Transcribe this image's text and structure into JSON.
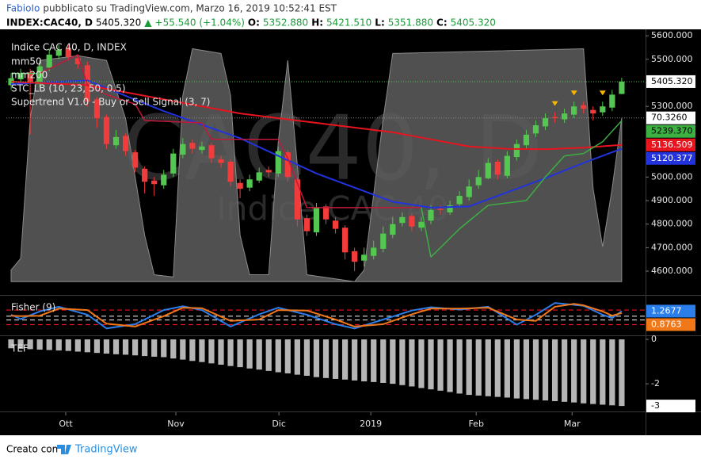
{
  "header": {
    "author": "FabioIo",
    "published": "pubblicato su TradingView.com, Marzo 16, 2019 10:52:41 EST",
    "symbol": "INDEX:CAC40, D",
    "last": "5405.320",
    "arrow": "▲",
    "change": "+55.540 (+1.04%)",
    "ohlc": [
      {
        "key": "O:",
        "value": "5352.880"
      },
      {
        "key": "H:",
        "value": "5421.510"
      },
      {
        "key": "L:",
        "value": "5351.880"
      },
      {
        "key": "C:",
        "value": "5405.320"
      }
    ]
  },
  "footer": {
    "made_with": "Creato con",
    "brand": "TradingView"
  },
  "chart_data": [
    {
      "type": "candlestick",
      "title": "Indice CAC 40, D, INDEX",
      "watermark": "CAC40, D",
      "watermark_sub": "Indice CAC 40",
      "xlim": [
        -0.5,
        66.5
      ],
      "xticks": [
        {
          "value": 5.73,
          "label": "Ott"
        },
        {
          "value": 17.27,
          "label": "Nov"
        },
        {
          "value": 28.07,
          "label": "Dic"
        },
        {
          "value": 37.7,
          "label": "2019"
        },
        {
          "value": 48.75,
          "label": "Feb"
        },
        {
          "value": 58.8,
          "label": "Mar"
        }
      ],
      "ylim": [
        4506,
        5624
      ],
      "yticks": [
        {
          "value": 5600,
          "label": "5600.000"
        },
        {
          "value": 5500,
          "label": "5500.000"
        },
        {
          "value": 5400,
          "label": "5400.000"
        },
        {
          "value": 5300,
          "label": "5300.000"
        },
        {
          "value": 5000,
          "label": "5000.000"
        },
        {
          "value": 4900,
          "label": "4900.000"
        },
        {
          "value": 4800,
          "label": "4800.000"
        },
        {
          "value": 4700,
          "label": "4700.000"
        },
        {
          "value": 4600,
          "label": "4600.000"
        }
      ],
      "y2lim": [
        -5,
        108
      ],
      "grid": false,
      "up_color": "#53c74f",
      "down_color": "#f23b3b",
      "open": [
        5390,
        5415,
        5445,
        5395,
        5465,
        5515,
        5545,
        5505,
        5475,
        5330,
        5255,
        5135,
        5175,
        5105,
        5035,
        4985,
        4965,
        5015,
        5095,
        5145,
        5115,
        5135,
        5075,
        5065,
        4975,
        4955,
        4985,
        5030,
        5015,
        5105,
        4990,
        4825,
        4765,
        4875,
        4815,
        4785,
        4685,
        4645,
        4665,
        4695,
        4755,
        4805,
        4835,
        4785,
        4815,
        4865,
        4850,
        4885,
        4915,
        4965,
        4995,
        5065,
        5005,
        5085,
        5135,
        5185,
        5215,
        5255,
        5245,
        5265,
        5305,
        5285,
        5275,
        5295,
        5352.88
      ],
      "high": [
        5440,
        5460,
        5460,
        5490,
        5545,
        5560,
        5565,
        5520,
        5490,
        5340,
        5265,
        5200,
        5185,
        5115,
        5045,
        5000,
        5030,
        5120,
        5165,
        5160,
        5150,
        5145,
        5090,
        5075,
        4990,
        5010,
        5040,
        5045,
        5130,
        5115,
        5000,
        4840,
        4890,
        4885,
        4830,
        4795,
        4700,
        4700,
        4730,
        4790,
        4830,
        4850,
        4845,
        4830,
        4880,
        4880,
        4900,
        4940,
        4990,
        5030,
        5080,
        5075,
        5110,
        5160,
        5200,
        5240,
        5270,
        5275,
        5290,
        5320,
        5320,
        5300,
        5320,
        5370,
        5421.51
      ],
      "low": [
        5370,
        5400,
        5180,
        5380,
        5450,
        5500,
        5495,
        5460,
        5300,
        5210,
        5120,
        5120,
        5090,
        5020,
        4930,
        4920,
        4950,
        5000,
        5080,
        5100,
        5100,
        5060,
        5040,
        4960,
        4910,
        4940,
        4975,
        5000,
        5000,
        4980,
        4790,
        4750,
        4750,
        4800,
        4760,
        4650,
        4600,
        4620,
        4650,
        4680,
        4740,
        4790,
        4770,
        4770,
        4800,
        4840,
        4840,
        4870,
        4900,
        4950,
        4990,
        4990,
        4995,
        5070,
        5120,
        5170,
        5200,
        5230,
        5230,
        5250,
        5270,
        5240,
        5260,
        5280,
        5351.88
      ],
      "close": [
        5420,
        5440,
        5400,
        5470,
        5520,
        5540,
        5510,
        5480,
        5320,
        5250,
        5140,
        5170,
        5110,
        5040,
        4980,
        4970,
        5010,
        5100,
        5140,
        5120,
        5130,
        5080,
        5060,
        4980,
        4950,
        4990,
        5020,
        5020,
        5110,
        5000,
        4820,
        4770,
        4870,
        4820,
        4780,
        4680,
        4640,
        4670,
        4700,
        4760,
        4800,
        4830,
        4790,
        4810,
        4860,
        4860,
        4880,
        4920,
        4960,
        5000,
        5060,
        5010,
        5090,
        5140,
        5180,
        5220,
        5250,
        5250,
        5270,
        5300,
        5290,
        5270,
        5300,
        5350,
        5405.32
      ],
      "last_label": "5405.320",
      "series": [
        {
          "name": "mm50",
          "color": "#2233dd",
          "x": [
            0,
            8,
            16,
            24,
            32,
            40,
            44,
            48,
            52,
            56,
            60,
            64
          ],
          "values": [
            5395,
            5410,
            5280,
            5165,
            5015,
            4895,
            4870,
            4875,
            4935,
            4995,
            5060,
            5120.377
          ],
          "last_label": "5120.377"
        },
        {
          "name": "mm200",
          "color": "#e8141e",
          "x": [
            0,
            8,
            16,
            24,
            32,
            40,
            44,
            48,
            52,
            56,
            60,
            64
          ],
          "values": [
            5405,
            5390,
            5330,
            5270,
            5230,
            5190,
            5160,
            5130,
            5120,
            5118,
            5125,
            5136.509
          ],
          "last_label": "5136.509"
        },
        {
          "name": "STC_LB (10, 23, 50, 0.5)",
          "color": "#5e5e5e",
          "axis": "y2",
          "x": [
            0,
            1,
            2,
            3,
            7,
            10,
            12,
            14,
            15,
            17,
            18,
            19,
            22,
            23,
            24,
            25,
            27,
            28,
            29,
            30,
            31,
            36,
            37,
            39,
            40,
            60,
            61,
            62,
            63,
            64
          ],
          "values": [
            5,
            10,
            70,
            95,
            97,
            95,
            70,
            20,
            3,
            2,
            80,
            100,
            98,
            80,
            20,
            3,
            3,
            60,
            95,
            50,
            3,
            0,
            5,
            70,
            98,
            100,
            40,
            15,
            40,
            70.326
          ],
          "last_label": "70.3260"
        },
        {
          "name": "Supertrend V1.0 - Buy or Sell Signal (3, 7)",
          "color": "#c2183b",
          "up_color": "#3cb043",
          "x": [
            0,
            3,
            7,
            8,
            10,
            13,
            14,
            20,
            21,
            28,
            29,
            31,
            43,
            44,
            45,
            47,
            50,
            54,
            56,
            58,
            60,
            62,
            64
          ],
          "values": [
            5440,
            5440,
            5520,
            5390,
            5350,
            5310,
            5240,
            5230,
            5160,
            5160,
            5080,
            4870,
            4870,
            4660,
            4700,
            4780,
            4880,
            4900,
            5000,
            5090,
            5100,
            5150,
            5239.37
          ],
          "last_label": "5239.370"
        }
      ],
      "signals": {
        "color": "#f5b800",
        "x": [
          57,
          59,
          62
        ]
      }
    },
    {
      "type": "line",
      "title": "Fisher (9)",
      "ylim": [
        -3.7,
        4.2
      ],
      "levels": [
        {
          "value": 1.5,
          "color": "#e8141e"
        },
        {
          "value": 0.2,
          "color": "#dddddd"
        },
        {
          "value": -0.6,
          "color": "#dddddd"
        },
        {
          "value": -1.6,
          "color": "#e8141e"
        }
      ],
      "series": [
        {
          "color": "#2b7de9",
          "x": [
            0,
            1,
            3,
            5,
            8,
            10,
            13,
            16,
            18,
            20,
            23,
            26,
            28,
            31,
            34,
            36,
            39,
            42,
            44,
            47,
            50,
            53,
            55,
            57,
            59,
            60,
            62,
            63,
            64
          ],
          "values": [
            0.5,
            -0.4,
            1.2,
            2.2,
            0.5,
            -2.4,
            -1.5,
            1.5,
            2.3,
            1.5,
            -2.0,
            0.6,
            2.0,
            0.5,
            -1.5,
            -2.4,
            -0.5,
            1.4,
            2.1,
            1.6,
            2.2,
            -1.6,
            0.5,
            3.0,
            2.6,
            2.4,
            0.5,
            -0.2,
            1.2677
          ],
          "last_label": "1.2677"
        },
        {
          "color": "#f07818",
          "x": [
            0,
            1,
            3,
            5,
            8,
            10,
            13,
            16,
            18,
            20,
            23,
            26,
            28,
            31,
            34,
            36,
            39,
            42,
            44,
            47,
            50,
            53,
            55,
            57,
            59,
            60,
            62,
            63,
            64
          ],
          "values": [
            0.3,
            0.2,
            0.3,
            1.8,
            1.5,
            -1.4,
            -2.0,
            0.2,
            2.0,
            1.9,
            -0.8,
            -0.5,
            1.5,
            1.4,
            -0.5,
            -2.0,
            -1.5,
            0.6,
            1.8,
            1.8,
            2.0,
            -0.5,
            -0.8,
            2.2,
            2.8,
            2.5,
            1.2,
            0.3,
            0.8763
          ],
          "last_label": "0.8763"
        }
      ]
    },
    {
      "type": "bar",
      "title": "TEF",
      "color": "#b5b5b5",
      "ylim": [
        -3.21,
        0.11
      ],
      "yticks": [
        0,
        -2
      ],
      "values": [
        -0.4,
        -0.42,
        -0.44,
        -0.46,
        -0.48,
        -0.5,
        -0.52,
        -0.55,
        -0.58,
        -0.61,
        -0.64,
        -0.67,
        -0.69,
        -0.72,
        -0.75,
        -0.78,
        -0.8,
        -0.86,
        -0.91,
        -0.97,
        -1.02,
        -1.08,
        -1.14,
        -1.2,
        -1.25,
        -1.31,
        -1.36,
        -1.42,
        -1.48,
        -1.53,
        -1.59,
        -1.64,
        -1.7,
        -1.74,
        -1.78,
        -1.81,
        -1.85,
        -1.89,
        -1.92,
        -1.96,
        -2.0,
        -2.06,
        -2.12,
        -2.19,
        -2.25,
        -2.31,
        -2.37,
        -2.44,
        -2.5,
        -2.53,
        -2.56,
        -2.59,
        -2.62,
        -2.66,
        -2.69,
        -2.72,
        -2.75,
        -2.78,
        -2.81,
        -2.84,
        -2.88,
        -2.91,
        -2.94,
        -2.97,
        -3
      ]
    }
  ]
}
